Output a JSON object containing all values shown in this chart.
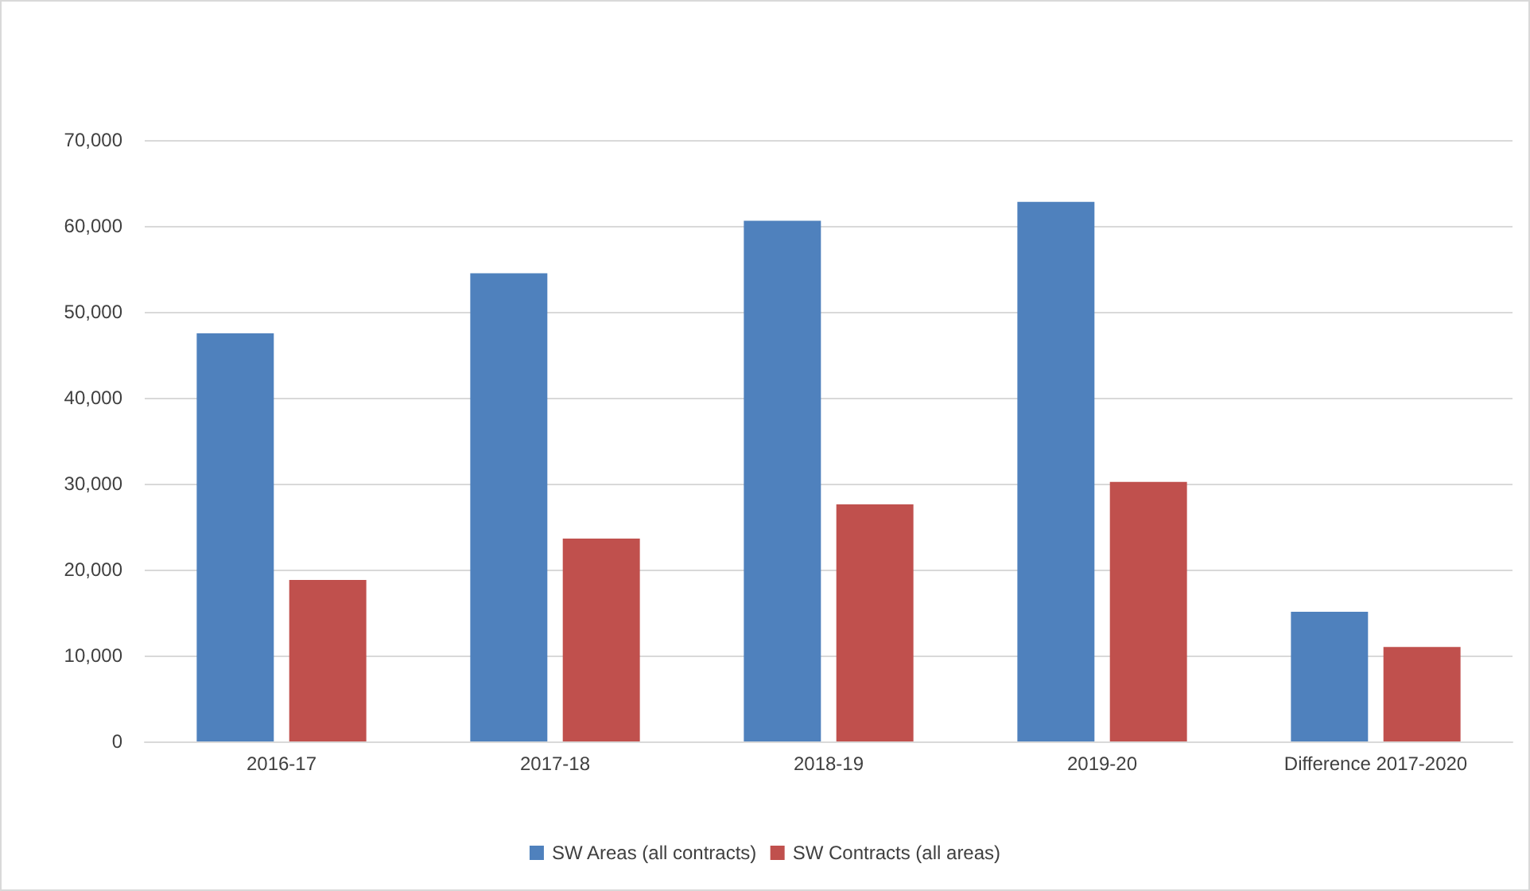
{
  "chart_data": {
    "type": "bar",
    "categories": [
      "2016-17",
      "2017-18",
      "2018-19",
      "2019-20",
      "Difference 2017-2020"
    ],
    "series": [
      {
        "name": "SW Areas (all contracts)",
        "color": "#4f81bd",
        "values": [
          47500,
          54500,
          60600,
          62800,
          15100
        ]
      },
      {
        "name": "SW Contracts (all areas)",
        "color": "#c0504d",
        "values": [
          18800,
          23600,
          27600,
          30200,
          11000
        ]
      }
    ],
    "ylim": [
      0,
      70000
    ],
    "yticks": [
      {
        "value": 0,
        "label": "0"
      },
      {
        "value": 10000,
        "label": "10,000"
      },
      {
        "value": 20000,
        "label": "20,000"
      },
      {
        "value": 30000,
        "label": "30,000"
      },
      {
        "value": 40000,
        "label": "40,000"
      },
      {
        "value": 50000,
        "label": "50,000"
      },
      {
        "value": 60000,
        "label": "60,000"
      },
      {
        "value": 70000,
        "label": "70,000"
      }
    ],
    "grid": "y",
    "legend": "bottom"
  }
}
